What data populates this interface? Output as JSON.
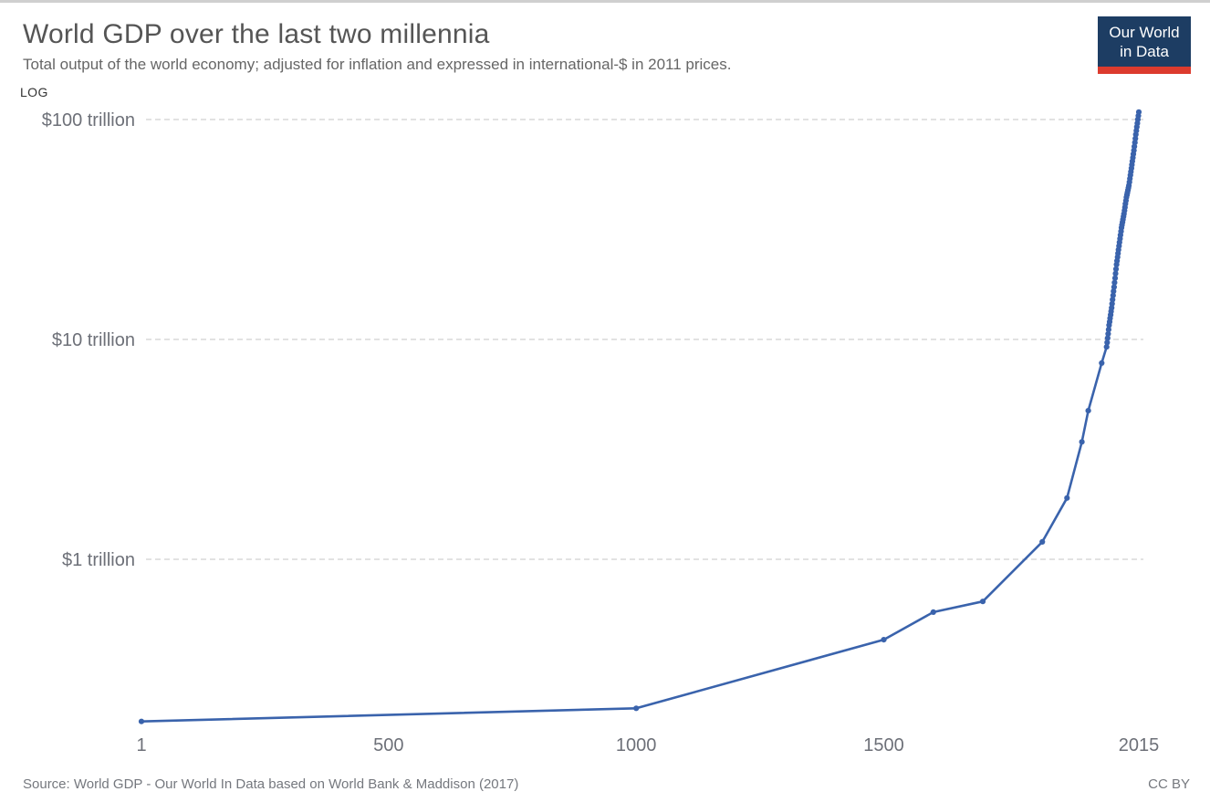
{
  "header": {
    "title": "World GDP over the last two millennia",
    "subtitle": "Total output of the world economy; adjusted for inflation and expressed in international-$ in 2011 prices.",
    "logo": {
      "line1": "Our World",
      "line2": "in Data",
      "bg_color": "#1d3d63",
      "stripe_color": "#dc3b2e"
    }
  },
  "footer": {
    "source": "Source: World GDP - Our World In Data based on World Bank & Maddison (2017)",
    "license": "CC BY"
  },
  "chart_data": {
    "type": "line",
    "title": "World GDP over the last two millennia",
    "subtitle": "Total output of the world economy; adjusted for inflation and expressed in international-$ in 2011 prices.",
    "scale_label": "LOG",
    "x_scale": "linear",
    "y_scale": "log",
    "unit": "trillion international-$ (2011 prices)",
    "grid": "horizontal-dashed",
    "legend": "none",
    "xlim": [
      1,
      2015
    ],
    "ylim_trillions": [
      0.15,
      115
    ],
    "x_ticks": [
      {
        "label": "1",
        "value": 1
      },
      {
        "label": "500",
        "value": 500
      },
      {
        "label": "1000",
        "value": 1000
      },
      {
        "label": "1500",
        "value": 1500
      },
      {
        "label": "2015",
        "value": 2015
      }
    ],
    "y_ticks": [
      {
        "label": "$1 trillion",
        "value": 1
      },
      {
        "label": "$10 trillion",
        "value": 10
      },
      {
        "label": "$100 trillion",
        "value": 100
      }
    ],
    "colors": {
      "line": "#3a63ac",
      "grid": "#d9d9d9",
      "ticks": "#6d7078"
    },
    "series": [
      {
        "name": "World GDP",
        "points": [
          [
            1,
            0.183
          ],
          [
            1000,
            0.21
          ],
          [
            1500,
            0.431
          ],
          [
            1600,
            0.575
          ],
          [
            1700,
            0.643
          ],
          [
            1820,
            1.2
          ],
          [
            1870,
            1.9
          ],
          [
            1900,
            3.42
          ],
          [
            1913,
            4.74
          ],
          [
            1940,
            7.81
          ],
          [
            1950,
            9.25
          ],
          [
            1951,
            9.68
          ],
          [
            1952,
            10.13
          ],
          [
            1953,
            10.6
          ],
          [
            1954,
            11.09
          ],
          [
            1955,
            11.6
          ],
          [
            1956,
            12.03
          ],
          [
            1957,
            12.47
          ],
          [
            1958,
            12.93
          ],
          [
            1959,
            13.41
          ],
          [
            1960,
            13.9
          ],
          [
            1961,
            14.52
          ],
          [
            1962,
            15.17
          ],
          [
            1963,
            15.85
          ],
          [
            1964,
            16.56
          ],
          [
            1965,
            17.3
          ],
          [
            1966,
            18.13
          ],
          [
            1967,
            19.01
          ],
          [
            1968,
            19.93
          ],
          [
            1969,
            20.89
          ],
          [
            1970,
            21.9
          ],
          [
            1971,
            22.77
          ],
          [
            1972,
            23.67
          ],
          [
            1973,
            24.61
          ],
          [
            1974,
            25.59
          ],
          [
            1975,
            26.6
          ],
          [
            1976,
            27.64
          ],
          [
            1977,
            28.71
          ],
          [
            1978,
            29.83
          ],
          [
            1979,
            31.0
          ],
          [
            1980,
            32.2
          ],
          [
            1981,
            33.14
          ],
          [
            1982,
            34.11
          ],
          [
            1983,
            35.11
          ],
          [
            1984,
            36.14
          ],
          [
            1985,
            37.2
          ],
          [
            1986,
            38.52
          ],
          [
            1987,
            39.89
          ],
          [
            1988,
            41.31
          ],
          [
            1989,
            42.78
          ],
          [
            1990,
            44.3
          ],
          [
            1991,
            45.4
          ],
          [
            1992,
            46.53
          ],
          [
            1993,
            47.69
          ],
          [
            1994,
            48.88
          ],
          [
            1995,
            50.1
          ],
          [
            1996,
            51.94
          ],
          [
            1997,
            53.85
          ],
          [
            1998,
            55.82
          ],
          [
            1999,
            57.87
          ],
          [
            2000,
            60.0
          ],
          [
            2001,
            62.28
          ],
          [
            2002,
            64.65
          ],
          [
            2003,
            67.1
          ],
          [
            2004,
            69.65
          ],
          [
            2005,
            72.3
          ],
          [
            2006,
            75.37
          ],
          [
            2007,
            78.57
          ],
          [
            2008,
            81.9
          ],
          [
            2009,
            85.38
          ],
          [
            2010,
            89.0
          ],
          [
            2011,
            92.53
          ],
          [
            2012,
            96.2
          ],
          [
            2013,
            100.01
          ],
          [
            2014,
            103.97
          ],
          [
            2015,
            108.11
          ]
        ]
      }
    ]
  }
}
